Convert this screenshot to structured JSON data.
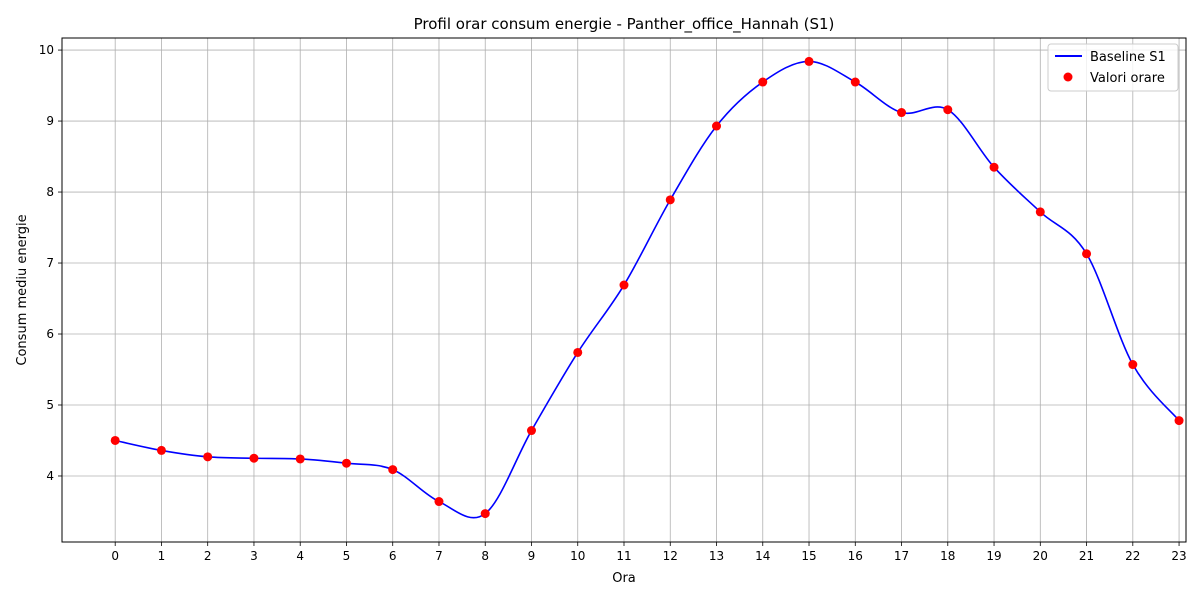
{
  "chart_data": {
    "type": "line",
    "title": "Profil orar consum energie - Panther_office_Hannah (S1)",
    "xlabel": "Ora",
    "ylabel": "Consum mediu energie",
    "x": [
      0,
      1,
      2,
      3,
      4,
      5,
      6,
      7,
      8,
      9,
      10,
      11,
      12,
      13,
      14,
      15,
      16,
      17,
      18,
      19,
      20,
      21,
      22,
      23
    ],
    "xlim": [
      -1.15,
      23.15
    ],
    "ylim": [
      3.07,
      10.17
    ],
    "x_ticks": [
      "0",
      "1",
      "2",
      "3",
      "4",
      "5",
      "6",
      "7",
      "8",
      "9",
      "10",
      "11",
      "12",
      "13",
      "14",
      "15",
      "16",
      "17",
      "18",
      "19",
      "20",
      "21",
      "22",
      "23"
    ],
    "y_ticks": [
      "4",
      "5",
      "6",
      "7",
      "8",
      "9",
      "10"
    ],
    "grid": true,
    "legend_position": "top-right",
    "series": [
      {
        "name": "Baseline S1",
        "kind": "line",
        "color": "#0000ff",
        "values": [
          4.5,
          4.36,
          4.27,
          4.25,
          4.24,
          4.18,
          4.09,
          3.64,
          3.47,
          4.64,
          5.74,
          6.69,
          7.89,
          8.93,
          9.55,
          9.84,
          9.55,
          9.12,
          9.16,
          8.35,
          7.72,
          7.13,
          5.57,
          4.78
        ]
      },
      {
        "name": "Valori orare",
        "kind": "scatter",
        "color": "#ff0000",
        "values": [
          4.5,
          4.36,
          4.27,
          4.25,
          4.24,
          4.18,
          4.09,
          3.64,
          3.47,
          4.64,
          5.74,
          6.69,
          7.89,
          8.93,
          9.55,
          9.84,
          9.55,
          9.12,
          9.16,
          8.35,
          7.72,
          7.13,
          5.57,
          4.78
        ]
      }
    ]
  }
}
